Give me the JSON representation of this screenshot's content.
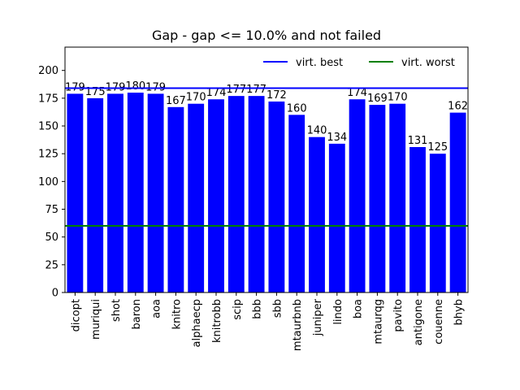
{
  "chart_data": {
    "type": "bar",
    "title": "Gap - gap <= 10.0% and not failed",
    "xlabel": "",
    "ylabel": "",
    "categories": [
      "dicopt",
      "muriqui",
      "shot",
      "baron",
      "aoa",
      "knitro",
      "alphaecp",
      "knitrobb",
      "scip",
      "bbb",
      "sbb",
      "mtaurbnb",
      "juniper",
      "lindo",
      "boa",
      "mtaurqg",
      "pavito",
      "antigone",
      "couenne",
      "bhyb"
    ],
    "values": [
      179,
      175,
      179,
      180,
      179,
      167,
      170,
      174,
      177,
      177,
      172,
      160,
      140,
      134,
      174,
      169,
      170,
      131,
      125,
      162
    ],
    "bar_color": "#0000ff",
    "ylim": [
      0,
      221
    ],
    "yticks": [
      0,
      25,
      50,
      75,
      100,
      125,
      150,
      175,
      200
    ],
    "reference_lines": [
      {
        "name": "virt. best",
        "value": 184,
        "color": "#0000ff"
      },
      {
        "name": "virt. worst",
        "value": 60,
        "color": "#008000"
      }
    ],
    "legend_position": "top-right",
    "grid": false
  }
}
